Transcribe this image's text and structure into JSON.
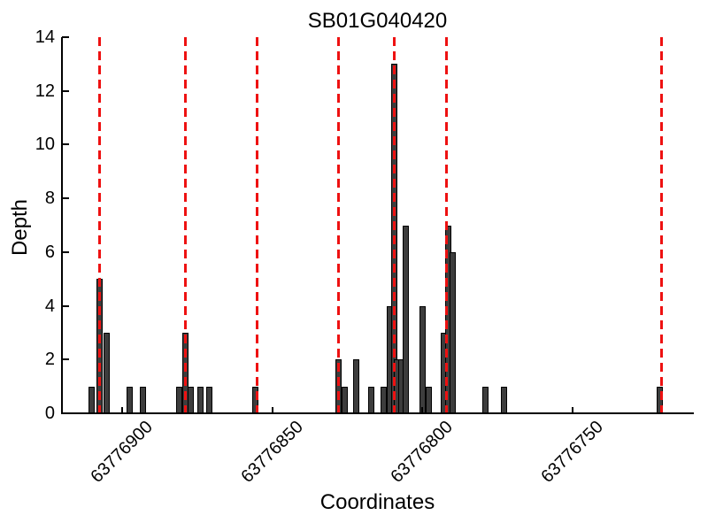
{
  "chart_data": {
    "type": "bar",
    "title": "SB01G040420",
    "xlabel": "Coordinates",
    "ylabel": "Depth",
    "x_axis_reversed": true,
    "xlim": [
      63776710,
      63776920
    ],
    "ylim": [
      0,
      14
    ],
    "grid": false,
    "legend": null,
    "yticks": [
      0,
      2,
      4,
      6,
      8,
      10,
      12,
      14
    ],
    "ytick_label_step": 2,
    "xticks": [
      {
        "value": 63776900,
        "label": "63776900"
      },
      {
        "value": 63776850,
        "label": "63776850"
      },
      {
        "value": 63776800,
        "label": "63776800"
      },
      {
        "value": 63776750,
        "label": "63776750"
      }
    ],
    "bars": [
      {
        "x": 63776910,
        "depth": 1
      },
      {
        "x": 63776907.5,
        "depth": 5
      },
      {
        "x": 63776905,
        "depth": 3
      },
      {
        "x": 63776897.5,
        "depth": 1
      },
      {
        "x": 63776893,
        "depth": 1
      },
      {
        "x": 63776881,
        "depth": 1
      },
      {
        "x": 63776879,
        "depth": 3
      },
      {
        "x": 63776877,
        "depth": 1
      },
      {
        "x": 63776874,
        "depth": 1
      },
      {
        "x": 63776871,
        "depth": 1
      },
      {
        "x": 63776855.5,
        "depth": 1
      },
      {
        "x": 63776828,
        "depth": 2
      },
      {
        "x": 63776826,
        "depth": 1
      },
      {
        "x": 63776822,
        "depth": 2
      },
      {
        "x": 63776817,
        "depth": 1
      },
      {
        "x": 63776813,
        "depth": 1
      },
      {
        "x": 63776811,
        "depth": 4
      },
      {
        "x": 63776809.5,
        "depth": 13
      },
      {
        "x": 63776808.5,
        "depth": 2
      },
      {
        "x": 63776807,
        "depth": 2
      },
      {
        "x": 63776805.5,
        "depth": 7
      },
      {
        "x": 63776800,
        "depth": 4
      },
      {
        "x": 63776798,
        "depth": 1
      },
      {
        "x": 63776793,
        "depth": 3
      },
      {
        "x": 63776791.5,
        "depth": 7
      },
      {
        "x": 63776790,
        "depth": 6
      },
      {
        "x": 63776779,
        "depth": 1
      },
      {
        "x": 63776773,
        "depth": 1
      },
      {
        "x": 63776721,
        "depth": 1
      }
    ],
    "marker_lines_x": [
      63776907.5,
      63776879,
      63776855,
      63776828,
      63776809.5,
      63776792,
      63776720.5
    ],
    "colors": {
      "background": "#ffffff",
      "bar_fill": "#3d3d3d",
      "bar_edge": "#000000",
      "marker_line": "#ee1111",
      "axis": "#000000",
      "text": "#000000"
    }
  }
}
